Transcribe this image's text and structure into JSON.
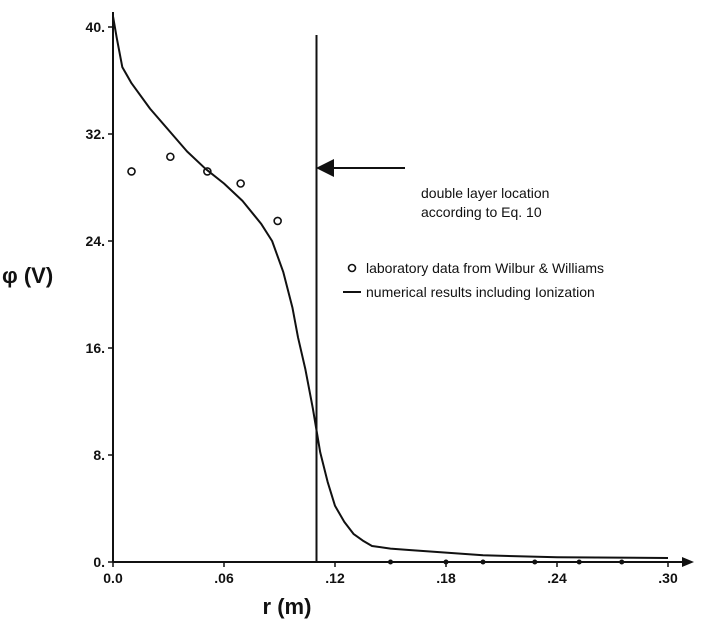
{
  "chart_data": {
    "type": "line",
    "title": "",
    "xlabel": "r (m)",
    "ylabel": "φ (V)",
    "xlim": [
      0.0,
      0.3
    ],
    "ylim": [
      0.0,
      40.0
    ],
    "x_ticks": [
      0.0,
      0.06,
      0.12,
      0.18,
      0.24,
      0.3
    ],
    "x_tick_labels": [
      "0.0",
      ".06",
      ".12",
      ".18",
      ".24",
      ".30"
    ],
    "y_ticks": [
      0,
      8,
      16,
      24,
      32,
      40
    ],
    "y_tick_labels": [
      "0.",
      "8.",
      "16.",
      "24.",
      "32.",
      "40."
    ],
    "grid": false,
    "legend_position": "right",
    "series": [
      {
        "name": "numerical results including Ionization",
        "kind": "line",
        "color": "#111111",
        "x": [
          0.0,
          0.002,
          0.005,
          0.01,
          0.02,
          0.03,
          0.04,
          0.05,
          0.06,
          0.07,
          0.08,
          0.086,
          0.092,
          0.097,
          0.1,
          0.104,
          0.108,
          0.112,
          0.116,
          0.12,
          0.125,
          0.13,
          0.135,
          0.14,
          0.15,
          0.16,
          0.18,
          0.2,
          0.24,
          0.3
        ],
        "y": [
          40.8,
          39.2,
          37.0,
          35.8,
          33.9,
          32.3,
          30.7,
          29.4,
          28.3,
          27.0,
          25.3,
          24.0,
          21.7,
          19.0,
          16.8,
          14.4,
          11.5,
          8.2,
          6.0,
          4.2,
          3.0,
          2.1,
          1.6,
          1.2,
          1.0,
          0.9,
          0.7,
          0.5,
          0.35,
          0.3
        ]
      },
      {
        "name": "laboratory data from Wilbur & Williams",
        "kind": "scatter",
        "color": "#111111",
        "x": [
          0.01,
          0.031,
          0.051,
          0.069,
          0.089
        ],
        "y": [
          29.2,
          30.3,
          29.2,
          28.3,
          25.5
        ]
      }
    ],
    "vertical_line": {
      "x": 0.11,
      "y_top": 39.4
    },
    "annotations": [
      {
        "text_line1": "double layer location",
        "text_line2": "according to Eq. 10",
        "arrow_target": "vertical line"
      }
    ],
    "bottom_baseline_points": {
      "x": [
        0.15,
        0.18,
        0.2,
        0.228,
        0.252,
        0.275
      ],
      "y": [
        0.0,
        0.0,
        0.0,
        0.0,
        0.0,
        0.0
      ]
    }
  }
}
